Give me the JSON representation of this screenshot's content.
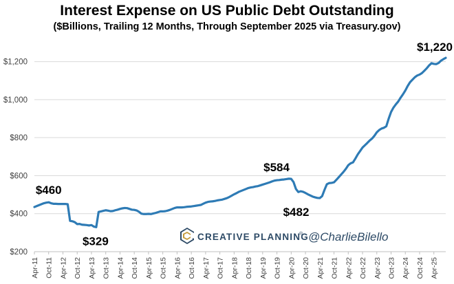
{
  "chart_data": {
    "type": "line",
    "title": "Interest Expense on US Public Debt Outstanding",
    "subtitle": "($Billions, Trailing 12 Months, Through September 2025 via Treasury.gov)",
    "xlabel": "",
    "ylabel": "",
    "ylim": [
      200,
      1300
    ],
    "y_ticks": [
      "$200",
      "$400",
      "$600",
      "$800",
      "$1,000",
      "$1,200"
    ],
    "y_tick_values": [
      200,
      400,
      600,
      800,
      1000,
      1200
    ],
    "grid": "horizontal",
    "line_color": "#2e7bb5",
    "x_tick_labels": [
      "Apr-11",
      "Oct-11",
      "Apr-12",
      "Oct-12",
      "Apr-13",
      "Oct-13",
      "Apr-14",
      "Oct-14",
      "Apr-15",
      "Oct-15",
      "Apr-16",
      "Oct-16",
      "Apr-17",
      "Oct-17",
      "Apr-18",
      "Oct-18",
      "Apr-19",
      "Oct-19",
      "Apr-20",
      "Oct-20",
      "Apr-21",
      "Oct-21",
      "Apr-22",
      "Oct-22",
      "Apr-23",
      "Oct-23",
      "Apr-24",
      "Oct-24",
      "Apr-25"
    ],
    "series": [
      {
        "x_start": "2011-04",
        "x_end": "2025-09",
        "frequency": "monthly",
        "values": [
          435,
          440,
          445,
          450,
          455,
          458,
          460,
          455,
          452,
          452,
          451,
          451,
          451,
          451,
          450,
          362,
          360,
          355,
          345,
          346,
          342,
          341,
          340,
          338,
          340,
          332,
          329,
          409,
          412,
          415,
          418,
          416,
          413,
          414,
          418,
          421,
          425,
          428,
          430,
          429,
          425,
          421,
          420,
          417,
          410,
          400,
          398,
          398,
          399,
          398,
          401,
          404,
          408,
          412,
          412,
          413,
          416,
          420,
          425,
          430,
          433,
          433,
          433,
          434,
          436,
          437,
          438,
          440,
          442,
          444,
          446,
          452,
          458,
          462,
          464,
          465,
          467,
          470,
          472,
          474,
          478,
          482,
          488,
          495,
          502,
          508,
          515,
          520,
          525,
          530,
          535,
          538,
          540,
          543,
          545,
          549,
          553,
          557,
          561,
          565,
          570,
          574,
          576,
          577,
          579,
          580,
          582,
          584,
          583,
          566,
          530,
          514,
          518,
          515,
          509,
          502,
          496,
          490,
          486,
          483,
          482,
          492,
          525,
          555,
          561,
          562,
          565,
          578,
          592,
          606,
          620,
          636,
          655,
          665,
          670,
          690,
          712,
          730,
          748,
          760,
          772,
          785,
          795,
          810,
          828,
          840,
          848,
          852,
          860,
          900,
          935,
          958,
          975,
          990,
          1010,
          1028,
          1048,
          1072,
          1092,
          1105,
          1118,
          1127,
          1132,
          1140,
          1152,
          1165,
          1180,
          1192,
          1188,
          1187,
          1193,
          1205,
          1213,
          1220
        ]
      }
    ],
    "annotations": [
      {
        "text": "$460",
        "x": "2011-10",
        "y": 460
      },
      {
        "text": "$329",
        "x": "2013-06",
        "y": 329
      },
      {
        "text": "$584",
        "x": "2019-11",
        "y": 584
      },
      {
        "text": "$482",
        "x": "2020-11",
        "y": 482
      },
      {
        "text": "$1,220",
        "x": "2025-09",
        "y": 1220
      }
    ]
  },
  "branding": {
    "company": "CREATIVE PLANNING",
    "registered_mark": "®",
    "handle": "@CharlieBilello",
    "logo_icon": "creative-planning-logo-icon",
    "colors": {
      "navy": "#2d4a66",
      "gold": "#c49a3a"
    }
  }
}
